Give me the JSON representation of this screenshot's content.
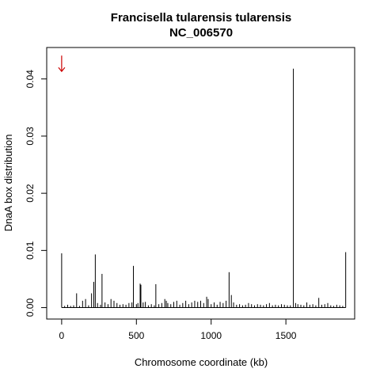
{
  "chart_data": {
    "type": "bar",
    "title": "Francisella tularensis tularensis",
    "subtitle": "NC_006570",
    "xlabel": "Chromosome coordinate (kb)",
    "ylabel": "DnaA box distribution",
    "xlim": [
      -100,
      1960
    ],
    "ylim": [
      -0.002,
      0.0455
    ],
    "x_ticks": [
      0,
      500,
      1000,
      1500
    ],
    "y_ticks": [
      0.0,
      0.01,
      0.02,
      0.03,
      0.04
    ],
    "x_tick_labels": [
      "0",
      "500",
      "1000",
      "1500"
    ],
    "y_tick_labels": [
      "0.00",
      "0.01",
      "0.02",
      "0.03",
      "0.04"
    ],
    "grid": false,
    "legend": "none",
    "bar_color": "#000000",
    "marker": {
      "type": "arrow-down",
      "color": "#cc0000",
      "x": 0,
      "y": 0.0427
    },
    "x": [
      0,
      20,
      40,
      60,
      80,
      100,
      120,
      140,
      160,
      180,
      200,
      215,
      225,
      240,
      260,
      270,
      290,
      310,
      330,
      350,
      370,
      390,
      410,
      430,
      450,
      470,
      480,
      500,
      510,
      525,
      530,
      545,
      560,
      580,
      600,
      620,
      630,
      650,
      670,
      690,
      700,
      710,
      730,
      750,
      770,
      790,
      810,
      830,
      850,
      870,
      890,
      910,
      930,
      950,
      970,
      980,
      1000,
      1020,
      1040,
      1060,
      1080,
      1100,
      1120,
      1135,
      1150,
      1170,
      1190,
      1210,
      1230,
      1250,
      1270,
      1290,
      1310,
      1330,
      1350,
      1370,
      1390,
      1410,
      1430,
      1450,
      1470,
      1490,
      1510,
      1530,
      1550,
      1565,
      1580,
      1600,
      1620,
      1640,
      1660,
      1680,
      1700,
      1720,
      1740,
      1760,
      1780,
      1800,
      1820,
      1840,
      1860,
      1880,
      1900
    ],
    "values": [
      0.0095,
      0.0003,
      0.0005,
      0.0003,
      0.0004,
      0.0025,
      0.0003,
      0.0012,
      0.0015,
      0.0004,
      0.0025,
      0.0045,
      0.0093,
      0.0008,
      0.0005,
      0.0059,
      0.0009,
      0.0006,
      0.0015,
      0.0012,
      0.0008,
      0.0005,
      0.0006,
      0.0005,
      0.0008,
      0.0009,
      0.0073,
      0.0006,
      0.0008,
      0.0042,
      0.004,
      0.0009,
      0.001,
      0.0004,
      0.0006,
      0.0004,
      0.0041,
      0.0006,
      0.0008,
      0.0015,
      0.0012,
      0.0008,
      0.0006,
      0.001,
      0.0012,
      0.0005,
      0.0008,
      0.0012,
      0.0006,
      0.0009,
      0.0012,
      0.001,
      0.0012,
      0.0008,
      0.0019,
      0.0015,
      0.0006,
      0.0009,
      0.0005,
      0.001,
      0.0008,
      0.0012,
      0.0062,
      0.0022,
      0.0009,
      0.0005,
      0.0006,
      0.0004,
      0.0005,
      0.0008,
      0.0006,
      0.0004,
      0.0006,
      0.0005,
      0.0004,
      0.0006,
      0.0008,
      0.0004,
      0.0005,
      0.0004,
      0.0006,
      0.0005,
      0.0004,
      0.0004,
      0.0418,
      0.0008,
      0.0006,
      0.0005,
      0.0004,
      0.0009,
      0.0005,
      0.0006,
      0.0004,
      0.0017,
      0.0005,
      0.0006,
      0.0008,
      0.0004,
      0.0003,
      0.0005,
      0.0004,
      0.0003,
      0.0097
    ]
  }
}
